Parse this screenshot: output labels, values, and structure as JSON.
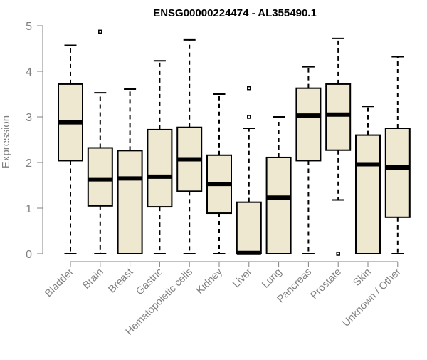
{
  "chart_data": {
    "type": "boxplot",
    "title": "ENSG00000224474 - AL355490.1",
    "xlabel": "",
    "ylabel": "Expression",
    "ylim": [
      0,
      5
    ],
    "yticks": [
      0,
      1,
      2,
      3,
      4,
      5
    ],
    "box_fill": "#efe8d1",
    "categories": [
      "Bladder",
      "Brain",
      "Breast",
      "Gastric",
      "Hematopoietic cells",
      "Kidney",
      "Liver",
      "Lung",
      "Pancreas",
      "Prostate",
      "Skin",
      "Unknown / Other"
    ],
    "boxes": [
      {
        "name": "Bladder",
        "whisker_low": 0,
        "q1": 2.04,
        "median": 2.88,
        "q3": 3.72,
        "whisker_high": 4.57,
        "outliers": []
      },
      {
        "name": "Brain",
        "whisker_low": 0,
        "q1": 1.05,
        "median": 1.63,
        "q3": 2.32,
        "whisker_high": 3.53,
        "outliers": [
          4.87
        ]
      },
      {
        "name": "Breast",
        "whisker_low": 0,
        "q1": 0,
        "median": 1.65,
        "q3": 2.26,
        "whisker_high": 3.61,
        "outliers": []
      },
      {
        "name": "Gastric",
        "whisker_low": 0,
        "q1": 1.03,
        "median": 1.69,
        "q3": 2.72,
        "whisker_high": 4.23,
        "outliers": []
      },
      {
        "name": "Hematopoietic cells",
        "whisker_low": 0,
        "q1": 1.37,
        "median": 2.07,
        "q3": 2.77,
        "whisker_high": 4.69,
        "outliers": []
      },
      {
        "name": "Kidney",
        "whisker_low": 0,
        "q1": 0.89,
        "median": 1.53,
        "q3": 2.16,
        "whisker_high": 3.5,
        "outliers": []
      },
      {
        "name": "Liver",
        "whisker_low": 0,
        "q1": 0,
        "median": 0.02,
        "q3": 1.13,
        "whisker_high": 2.75,
        "outliers": [
          3.0,
          3.63
        ]
      },
      {
        "name": "Lung",
        "whisker_low": 0,
        "q1": 0,
        "median": 1.23,
        "q3": 2.11,
        "whisker_high": 3.0,
        "outliers": []
      },
      {
        "name": "Pancreas",
        "whisker_low": 0,
        "q1": 2.04,
        "median": 3.03,
        "q3": 3.63,
        "whisker_high": 4.1,
        "outliers": []
      },
      {
        "name": "Prostate",
        "whisker_low": 1.18,
        "q1": 2.27,
        "median": 3.05,
        "q3": 3.72,
        "whisker_high": 4.72,
        "outliers": [
          0
        ]
      },
      {
        "name": "Skin",
        "whisker_low": 0,
        "q1": 0,
        "median": 1.96,
        "q3": 2.6,
        "whisker_high": 3.23,
        "outliers": []
      },
      {
        "name": "Unknown / Other",
        "whisker_low": 0,
        "q1": 0.8,
        "median": 1.89,
        "q3": 2.75,
        "whisker_high": 4.32,
        "outliers": []
      }
    ]
  }
}
